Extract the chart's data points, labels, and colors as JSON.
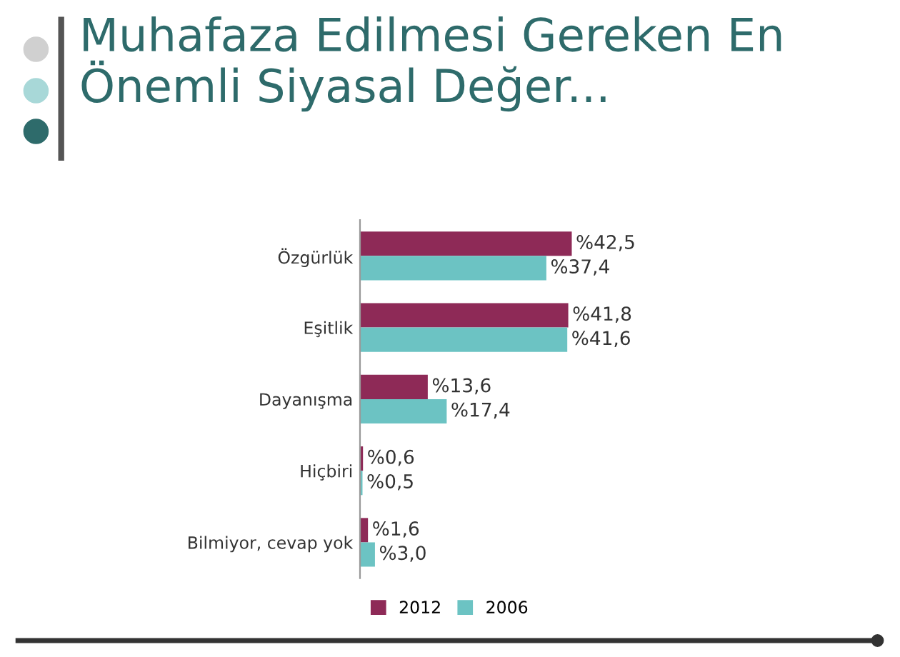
{
  "chart_data": {
    "type": "bar",
    "orientation": "horizontal",
    "title": "Muhafaza Edilmesi Gereken En\nÖnemli Siyasal Değer...",
    "categories": [
      "Özgürlük",
      "Eşitlik",
      "Dayanışma",
      "Hiçbiri",
      "Bilmiyor, cevap yok"
    ],
    "series": [
      {
        "name": "2012",
        "color": "#8e2a57",
        "values": [
          42.5,
          41.8,
          13.6,
          0.6,
          1.6
        ],
        "value_labels": [
          "%42,5",
          "%41,8",
          "%13,6",
          "%0,6",
          "%1,6"
        ]
      },
      {
        "name": "2006",
        "color": "#6cc3c3",
        "values": [
          37.4,
          41.6,
          17.4,
          0.5,
          3.0
        ],
        "value_labels": [
          "%37,4",
          "%41,6",
          "%17,4",
          "%0,5",
          "%3,0"
        ]
      }
    ],
    "legend": "bottom",
    "grid": false
  }
}
